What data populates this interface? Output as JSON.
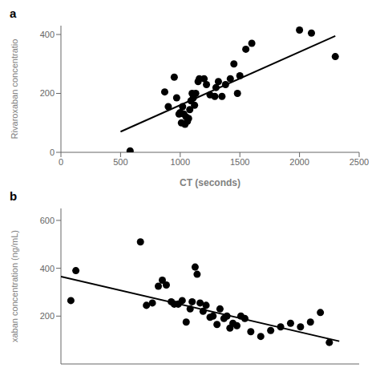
{
  "chart_data": [
    {
      "type": "scatter",
      "title": "a",
      "xlabel": "CT (seconds)",
      "ylabel": "Rivaroxaban concentratio",
      "xlim": [
        0,
        2500
      ],
      "ylim": [
        0,
        430
      ],
      "xticks": [
        0,
        500,
        1000,
        1500,
        2000,
        2500
      ],
      "yticks": [
        0,
        200,
        400
      ],
      "grid": false,
      "series": [
        {
          "type": "scatter",
          "color": "#000000",
          "x": [
            580,
            870,
            900,
            950,
            970,
            990,
            1000,
            1010,
            1020,
            1030,
            1040,
            1050,
            1060,
            1070,
            1080,
            1090,
            1100,
            1110,
            1120,
            1130,
            1150,
            1160,
            1200,
            1220,
            1250,
            1290,
            1300,
            1320,
            1350,
            1380,
            1420,
            1450,
            1480,
            1500,
            1550,
            1600,
            2000,
            2100,
            2300
          ],
          "values": [
            5,
            205,
            155,
            255,
            185,
            130,
            135,
            100,
            155,
            130,
            95,
            120,
            105,
            115,
            145,
            175,
            200,
            185,
            160,
            200,
            240,
            250,
            250,
            230,
            195,
            190,
            220,
            240,
            190,
            230,
            250,
            300,
            200,
            260,
            350,
            370,
            415,
            405,
            325
          ]
        },
        {
          "type": "line",
          "color": "#000000",
          "x": [
            500,
            2300
          ],
          "values": [
            70,
            395
          ]
        }
      ]
    },
    {
      "type": "scatter",
      "title": "b",
      "ylabel": "xaban concentration (ng/mL)",
      "xlim": [
        300,
        1800
      ],
      "ylim": [
        0,
        650
      ],
      "yticks": [
        200,
        400,
        600
      ],
      "tick_labels": "y",
      "grid": false,
      "series": [
        {
          "type": "scatter",
          "color": "#000000",
          "x": [
            350,
            375,
            700,
            730,
            760,
            790,
            810,
            830,
            855,
            870,
            890,
            910,
            930,
            950,
            960,
            975,
            985,
            1000,
            1015,
            1030,
            1050,
            1065,
            1085,
            1100,
            1120,
            1135,
            1150,
            1165,
            1185,
            1205,
            1225,
            1255,
            1305,
            1355,
            1405,
            1455,
            1505,
            1555,
            1605,
            1650
          ],
          "values": [
            265,
            390,
            510,
            245,
            255,
            325,
            350,
            330,
            260,
            250,
            250,
            265,
            175,
            230,
            260,
            405,
            375,
            255,
            220,
            245,
            195,
            200,
            165,
            230,
            190,
            200,
            150,
            170,
            160,
            200,
            190,
            135,
            115,
            140,
            155,
            170,
            155,
            175,
            215,
            90
          ]
        },
        {
          "type": "line",
          "color": "#000000",
          "x": [
            300,
            1700
          ],
          "values": [
            365,
            95
          ]
        }
      ]
    }
  ]
}
